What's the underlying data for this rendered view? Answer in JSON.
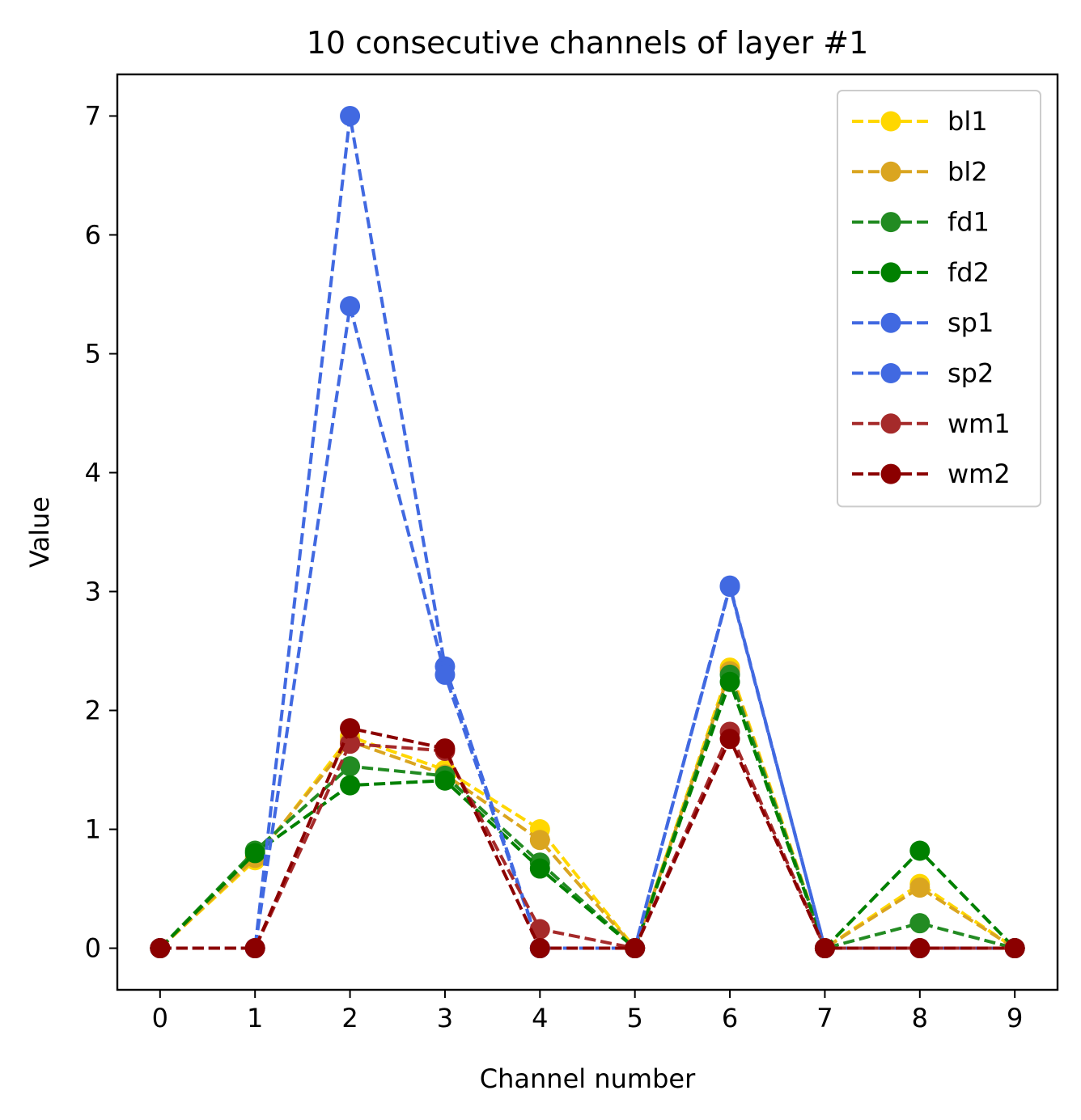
{
  "chart_data": {
    "type": "line",
    "title": "10 consecutive channels of layer #1",
    "xlabel": "Channel number",
    "ylabel": "Value",
    "x": [
      0,
      1,
      2,
      3,
      4,
      5,
      6,
      7,
      8,
      9
    ],
    "xlim": [
      -0.45,
      9.45
    ],
    "ylim": [
      -0.35,
      7.35
    ],
    "xticks": [
      "0",
      "1",
      "2",
      "3",
      "4",
      "5",
      "6",
      "7",
      "8",
      "9"
    ],
    "yticks": [
      "0",
      "1",
      "2",
      "3",
      "4",
      "5",
      "6",
      "7"
    ],
    "legend_position": "top-right",
    "grid": false,
    "line_style": "dashed",
    "marker": "circle",
    "series": [
      {
        "name": "bl1",
        "color": "#FFD700",
        "values": [
          0,
          0.74,
          1.78,
          1.5,
          1.0,
          0,
          2.36,
          0,
          0.54,
          0
        ]
      },
      {
        "name": "bl2",
        "color": "#DAA520",
        "values": [
          0,
          0.76,
          1.74,
          1.46,
          0.91,
          0,
          2.33,
          0,
          0.51,
          0
        ]
      },
      {
        "name": "fd1",
        "color": "#228B22",
        "values": [
          0,
          0.82,
          1.53,
          1.45,
          0.72,
          0,
          2.3,
          0,
          0.21,
          0
        ]
      },
      {
        "name": "fd2",
        "color": "#008000",
        "values": [
          0,
          0.8,
          1.37,
          1.41,
          0.67,
          0,
          2.24,
          0,
          0.82,
          0
        ]
      },
      {
        "name": "sp1",
        "color": "#4169E1",
        "values": [
          0,
          0,
          7.0,
          2.37,
          0,
          0,
          3.05,
          0,
          0,
          0
        ]
      },
      {
        "name": "sp2",
        "color": "#4169E1",
        "values": [
          0,
          0,
          5.4,
          2.3,
          0,
          0,
          3.04,
          0,
          0,
          0
        ]
      },
      {
        "name": "wm1",
        "color": "#A52A2A",
        "values": [
          0,
          0,
          1.72,
          1.66,
          0.16,
          0,
          1.82,
          0,
          0,
          0
        ]
      },
      {
        "name": "wm2",
        "color": "#8B0000",
        "values": [
          0,
          0,
          1.85,
          1.68,
          0,
          0,
          1.76,
          0,
          0,
          0
        ]
      }
    ]
  }
}
